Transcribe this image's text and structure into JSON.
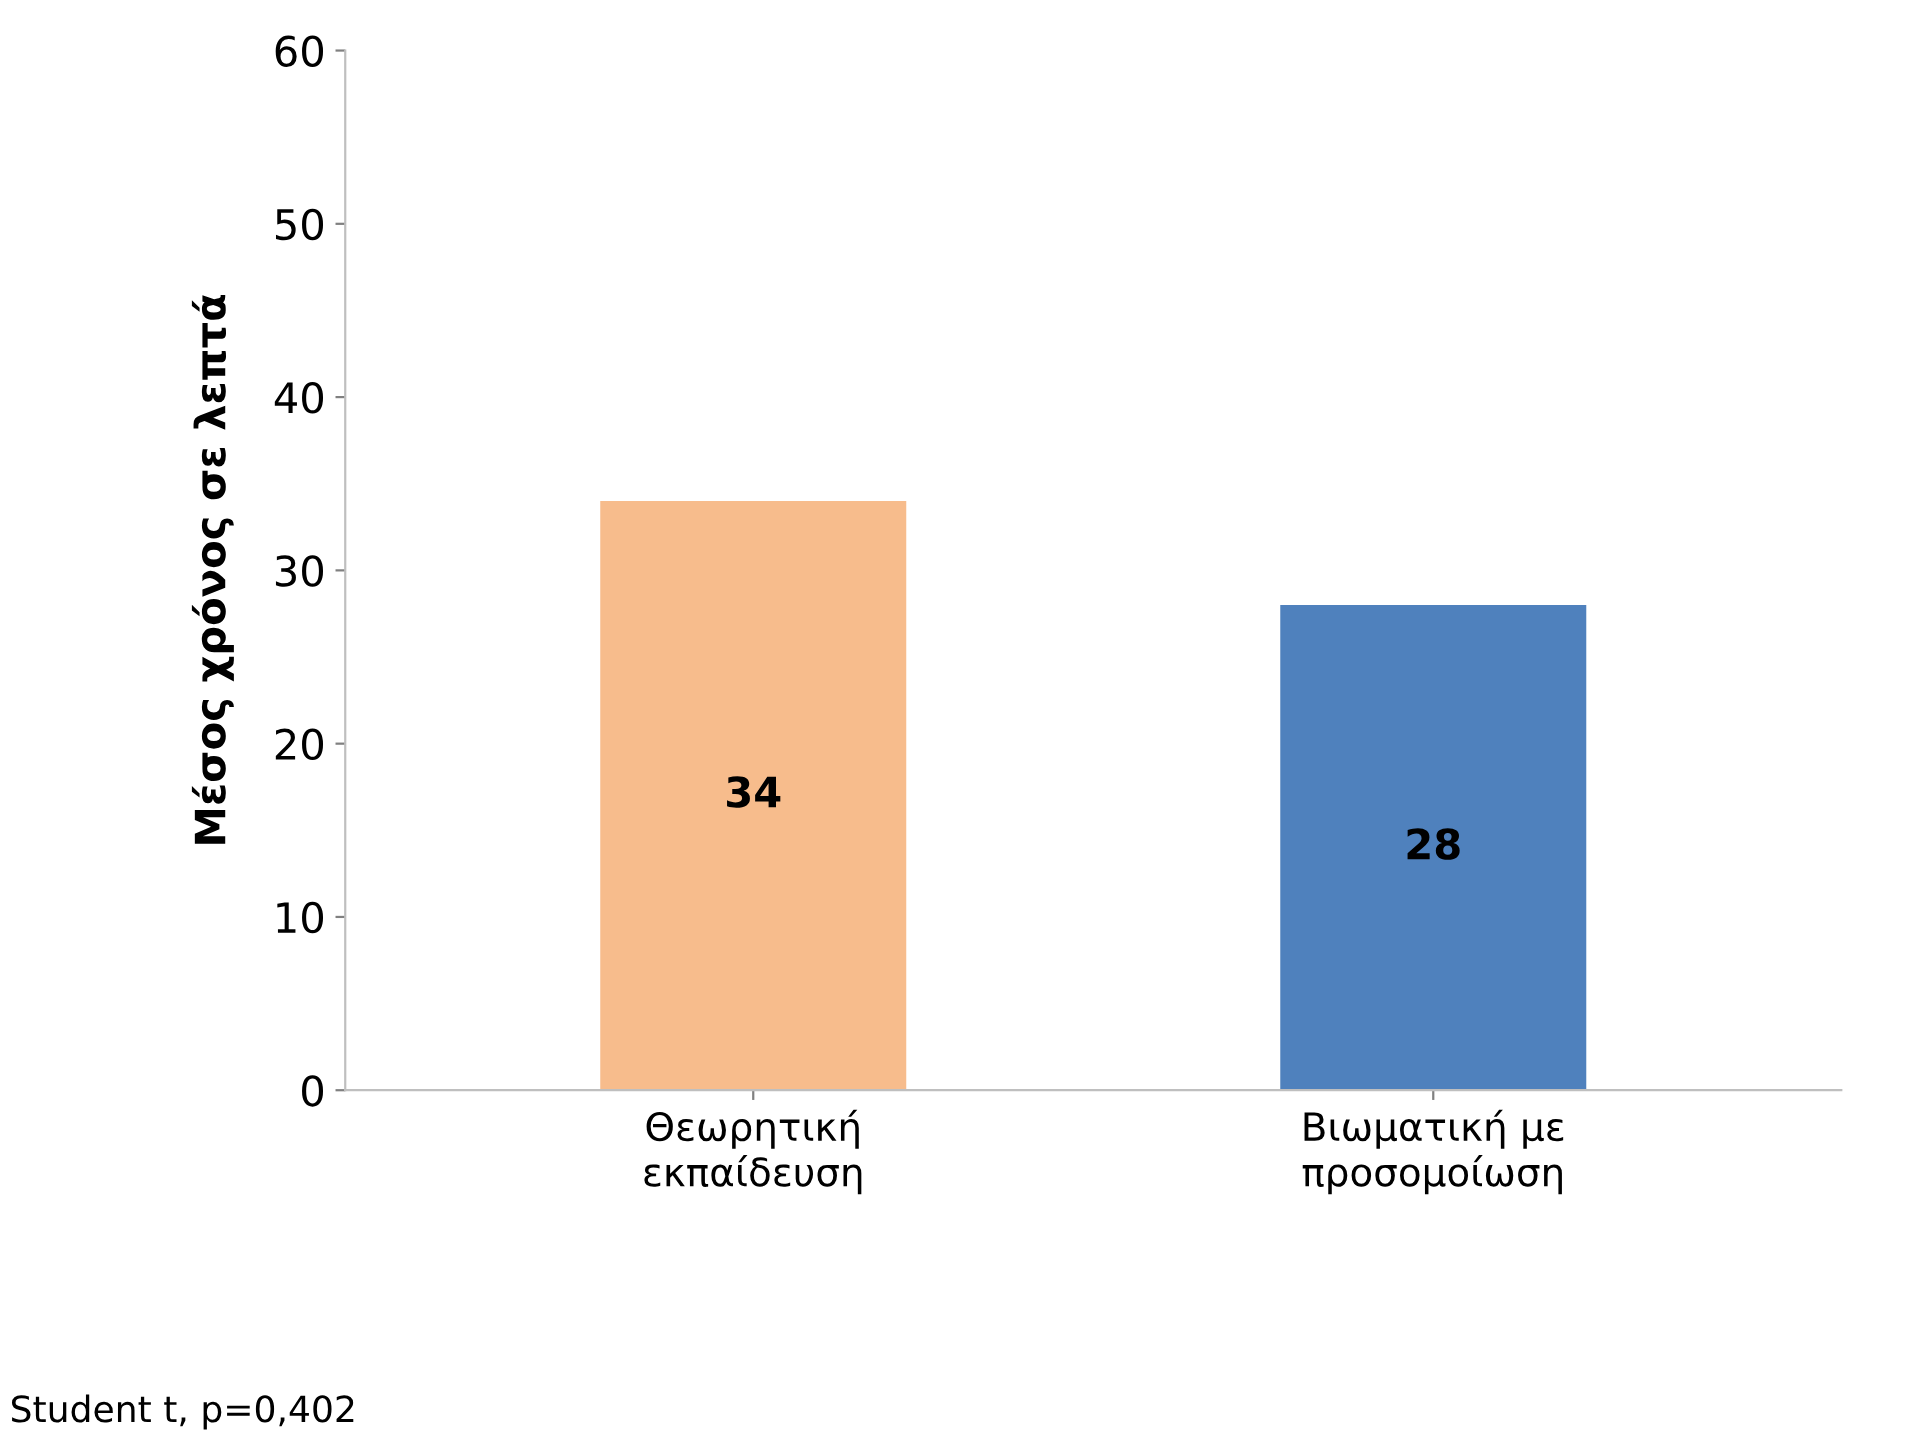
{
  "chart_data": {
    "type": "bar",
    "ylabel": "Μέσος χρόνος σε λεπτά",
    "categories": [
      "Θεωρητική\nεκπαίδευση",
      "Βιωματική με\nπροσομοίωση"
    ],
    "values": [
      34,
      28
    ],
    "colors": [
      "#f7bc8c",
      "#4f81bd"
    ],
    "ylim": [
      0,
      60
    ],
    "yticks": [
      0,
      10,
      20,
      30,
      40,
      50,
      60
    ],
    "grid": false,
    "data_labels": true,
    "annotations": [
      "Student t, p=0,402"
    ]
  }
}
